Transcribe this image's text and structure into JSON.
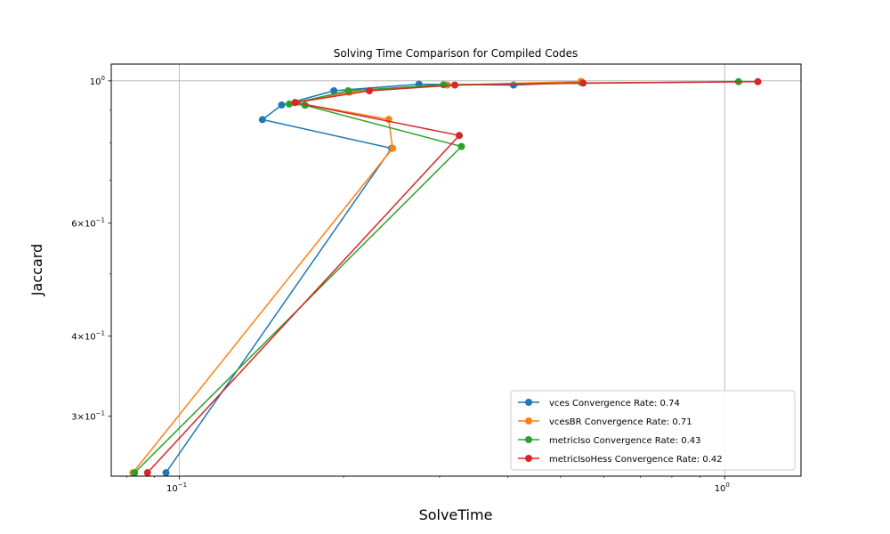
{
  "chart_data": {
    "type": "line",
    "title": "Solving Time Comparison for Compiled Codes",
    "xlabel": "SolveTime",
    "ylabel": "Jaccard",
    "xscale": "log",
    "yscale": "log",
    "xlim": [
      0.075,
      1.38
    ],
    "ylim": [
      0.242,
      1.062
    ],
    "grid": "major",
    "legend_position": "lower-right",
    "x_ticks": [
      {
        "value": 0.1,
        "base": "10",
        "exp": "−1"
      },
      {
        "value": 1.0,
        "base": "10",
        "exp": "0"
      }
    ],
    "y_ticks": [
      {
        "value": 1.0,
        "mant": "",
        "base": "10",
        "exp": "0"
      },
      {
        "value": 0.6,
        "mant": "6×",
        "base": "10",
        "exp": "−1"
      },
      {
        "value": 0.4,
        "mant": "4×",
        "base": "10",
        "exp": "−1"
      },
      {
        "value": 0.3,
        "mant": "3×",
        "base": "10",
        "exp": "−1"
      }
    ],
    "y_minor_ticks": [
      0.5,
      0.7,
      0.8,
      0.9
    ],
    "series": [
      {
        "name": "vces Convergence Rate: 0.74",
        "color": "#1f77b4",
        "x": [
          0.0945,
          0.245,
          0.142,
          0.154,
          0.192,
          0.275,
          0.41,
          0.545
        ],
        "y": [
          0.245,
          0.785,
          0.87,
          0.917,
          0.965,
          0.988,
          0.985,
          0.995
        ]
      },
      {
        "name": "vcesBR Convergence Rate: 0.71",
        "color": "#ff7f0e",
        "x": [
          0.0822,
          0.246,
          0.242,
          0.163,
          0.205,
          0.31,
          0.545
        ],
        "y": [
          0.245,
          0.785,
          0.871,
          0.925,
          0.96,
          0.985,
          0.998
        ]
      },
      {
        "name": "metricIso Convergence Rate: 0.43",
        "color": "#2ca02c",
        "x": [
          0.0828,
          0.329,
          0.17,
          0.159,
          0.204,
          0.305,
          1.06
        ],
        "y": [
          0.245,
          0.79,
          0.916,
          0.92,
          0.965,
          0.986,
          0.997
        ]
      },
      {
        "name": "metricIsoHess Convergence Rate: 0.42",
        "color": "#d62728",
        "x": [
          0.0874,
          0.326,
          0.163,
          0.223,
          0.32,
          0.55,
          1.15
        ],
        "y": [
          0.245,
          0.822,
          0.925,
          0.965,
          0.985,
          0.992,
          0.997
        ]
      }
    ]
  }
}
